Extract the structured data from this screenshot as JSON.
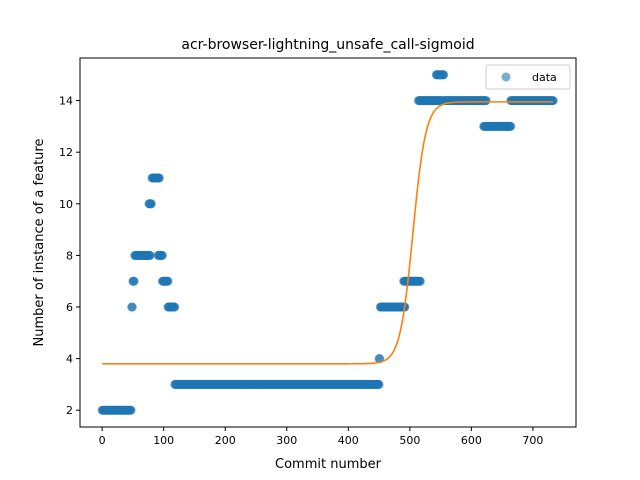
{
  "chart_data": {
    "type": "scatter",
    "title": "acr-browser-lightning_unsafe_call-sigmoid",
    "xlabel": "Commit number",
    "ylabel": "Number of instance of a feature",
    "xlim": [
      -36,
      770
    ],
    "ylim": [
      1.35,
      15.65
    ],
    "xticks": [
      0,
      100,
      200,
      300,
      400,
      500,
      600,
      700
    ],
    "yticks": [
      2,
      4,
      6,
      8,
      10,
      12,
      14
    ],
    "grid": false,
    "legend": {
      "placement": "top-right",
      "entries": [
        "data"
      ]
    },
    "colors": {
      "data": "#1f77b4",
      "fit": "#ff7f0e"
    },
    "series": [
      {
        "name": "data",
        "kind": "scatter",
        "segments": [
          {
            "x_start": 0,
            "x_end": 47,
            "y": 2
          },
          {
            "x_start": 48,
            "x_end": 49,
            "y": 6
          },
          {
            "x_start": 50,
            "x_end": 52,
            "y": 7
          },
          {
            "x_start": 53,
            "x_end": 78,
            "y": 8
          },
          {
            "x_start": 76,
            "x_end": 80,
            "y": 10
          },
          {
            "x_start": 81,
            "x_end": 93,
            "y": 11
          },
          {
            "x_start": 91,
            "x_end": 98,
            "y": 8
          },
          {
            "x_start": 98,
            "x_end": 107,
            "y": 7
          },
          {
            "x_start": 107,
            "x_end": 118,
            "y": 6
          },
          {
            "x_start": 118,
            "x_end": 450,
            "y": 3
          },
          {
            "x_start": 450,
            "x_end": 451,
            "y": 4
          },
          {
            "x_start": 452,
            "x_end": 492,
            "y": 6
          },
          {
            "x_start": 490,
            "x_end": 517,
            "y": 7
          },
          {
            "x_start": 514,
            "x_end": 552,
            "y": 14
          },
          {
            "x_start": 543,
            "x_end": 555,
            "y": 15
          },
          {
            "x_start": 555,
            "x_end": 624,
            "y": 14
          },
          {
            "x_start": 620,
            "x_end": 664,
            "y": 13
          },
          {
            "x_start": 664,
            "x_end": 733,
            "y": 14
          }
        ]
      },
      {
        "name": "",
        "kind": "line",
        "model": "sigmoid",
        "low": 3.8,
        "high": 13.95,
        "midpoint": 505,
        "rate": 0.095,
        "x_range": [
          0,
          733
        ]
      }
    ]
  }
}
